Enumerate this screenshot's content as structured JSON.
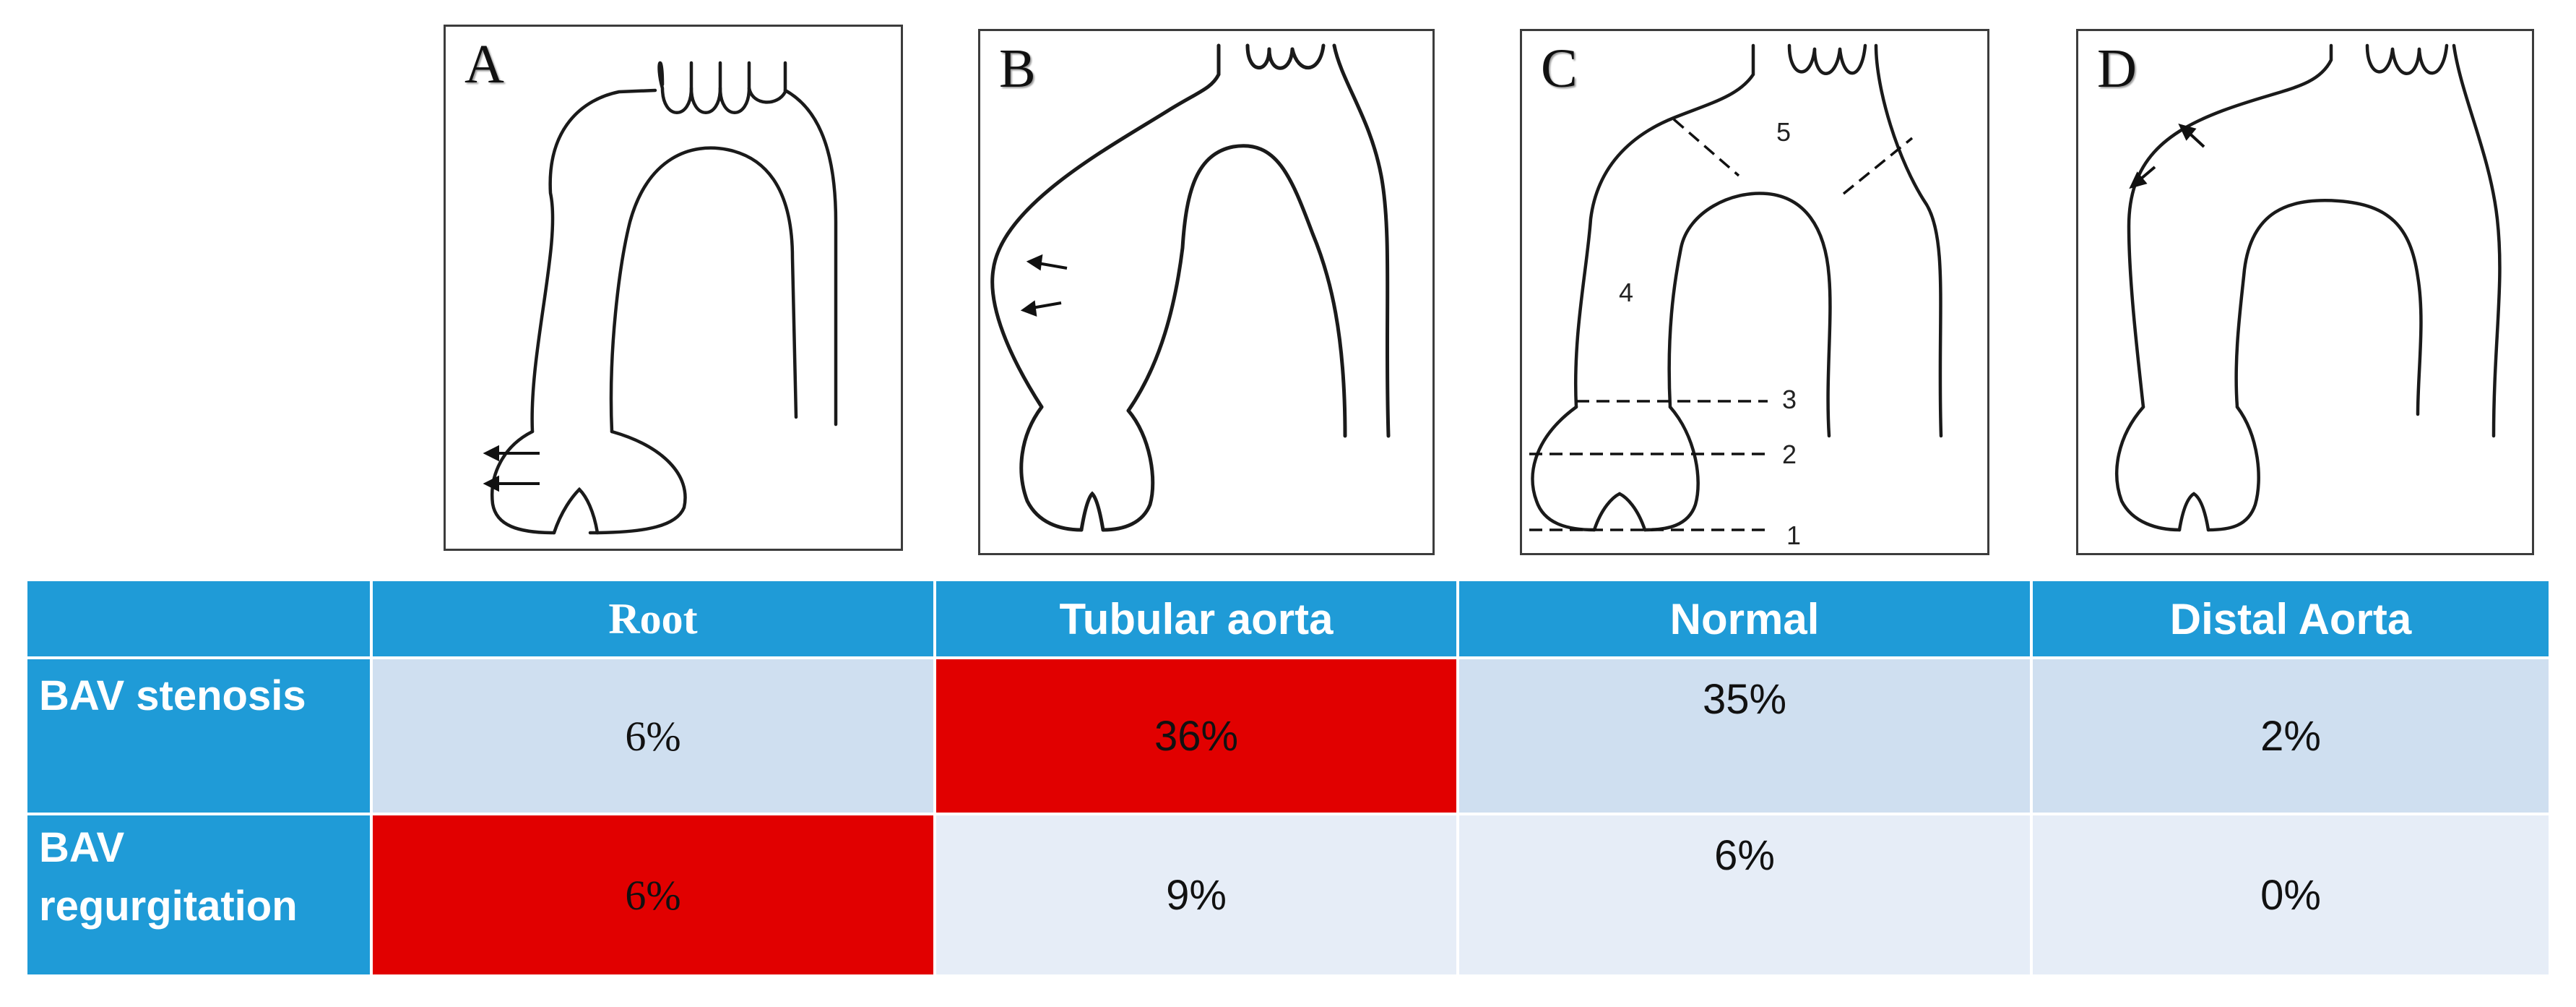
{
  "panels": [
    {
      "letter": "A"
    },
    {
      "letter": "B"
    },
    {
      "letter": "C",
      "segments": [
        "1",
        "2",
        "3",
        "4",
        "5"
      ]
    },
    {
      "letter": "D"
    }
  ],
  "table": {
    "columns": [
      "Root",
      "Tubular aorta",
      "Normal",
      "Distal Aorta"
    ],
    "rows": [
      {
        "label": "BAV stenosis",
        "values": [
          "6%",
          "36%",
          "35%",
          "2%"
        ],
        "highlighted": "Tubular aorta"
      },
      {
        "label": "BAV\nregurgitation",
        "values": [
          "6%",
          "9%",
          "6%",
          "0%"
        ],
        "highlighted": "Root"
      }
    ]
  },
  "colors": {
    "header_blue": "#1f9bd7",
    "highlight_red": "#e10000",
    "row1_bg": "#cfdff0",
    "row2_bg": "#e6edf7"
  }
}
